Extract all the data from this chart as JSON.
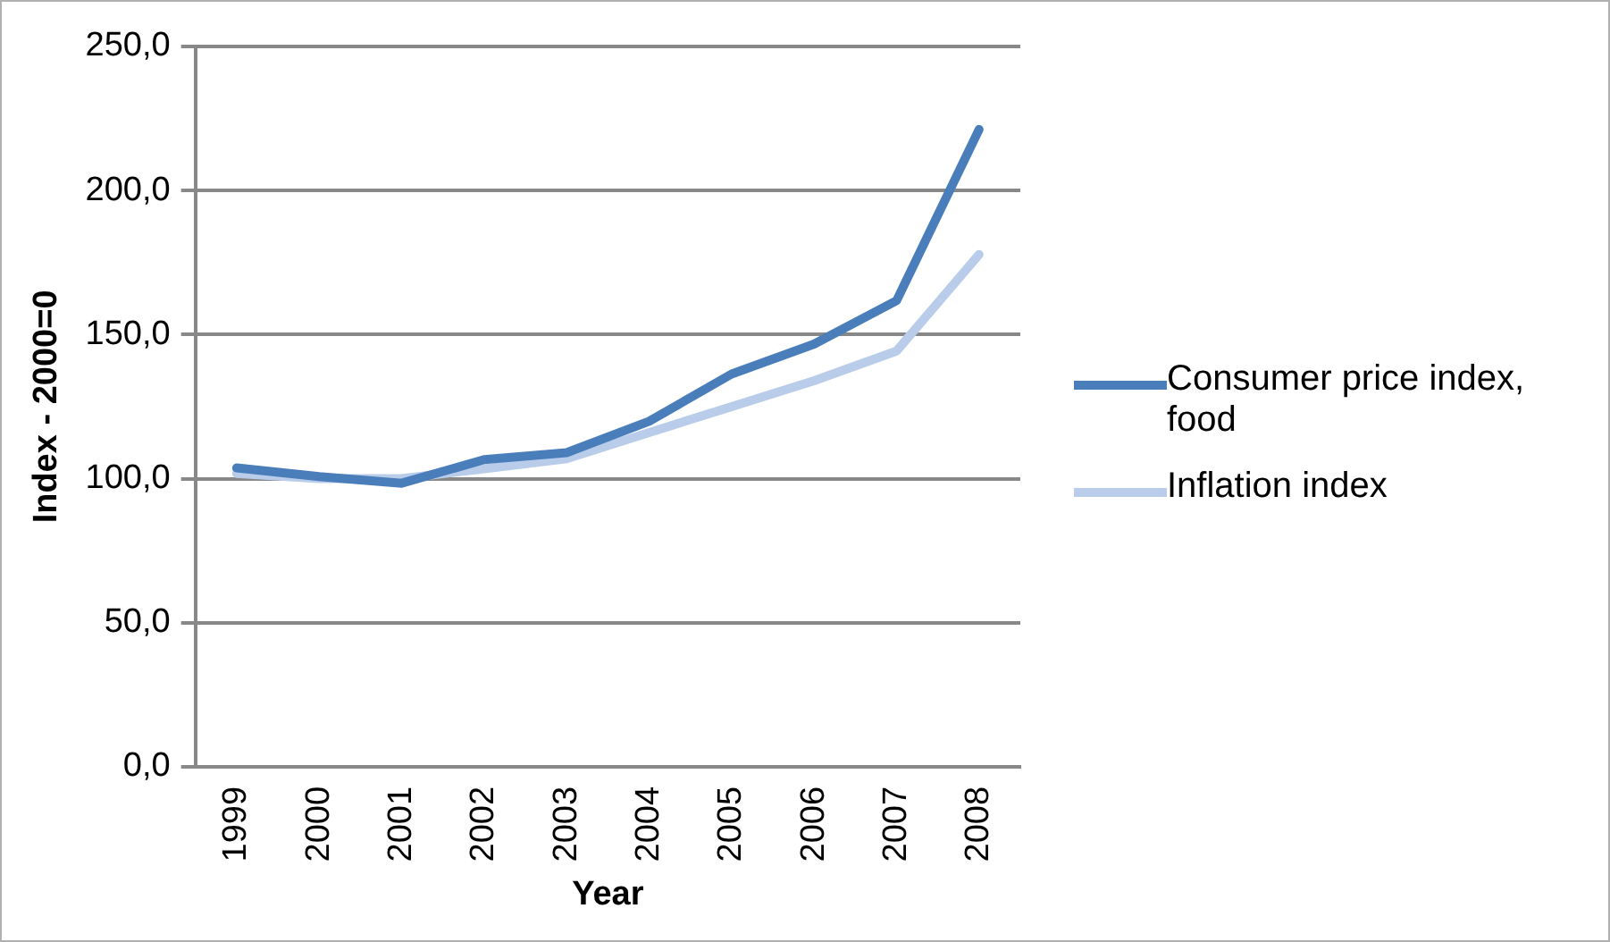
{
  "chart_data": {
    "type": "line",
    "xlabel": "Year",
    "ylabel": "Index - 2000=0",
    "categories": [
      "1999",
      "2000",
      "2001",
      "2002",
      "2003",
      "2004",
      "2005",
      "2006",
      "2007",
      "2008"
    ],
    "series": [
      {
        "name": "Consumer price index, food",
        "color": "#4a7ebb",
        "values": [
          103.7,
          100.7,
          98.4,
          106.6,
          109,
          119.9,
          136.3,
          146.7,
          161.8,
          221.2
        ]
      },
      {
        "name": "Inflation index",
        "color": "#b9cdea",
        "values": [
          101.8,
          100,
          100,
          103.4,
          106.9,
          116,
          125,
          134,
          144.3,
          177.8
        ]
      }
    ],
    "ylim": [
      0,
      250
    ],
    "yticks": [
      {
        "value": 0,
        "label": "0,0"
      },
      {
        "value": 50,
        "label": "50,0"
      },
      {
        "value": 100,
        "label": "100,0"
      },
      {
        "value": 150,
        "label": "150,0"
      },
      {
        "value": 200,
        "label": "200,0"
      },
      {
        "value": 250,
        "label": "250,0"
      }
    ],
    "grid": "y",
    "legend": "right",
    "marker": "none",
    "line_style": "solid"
  }
}
